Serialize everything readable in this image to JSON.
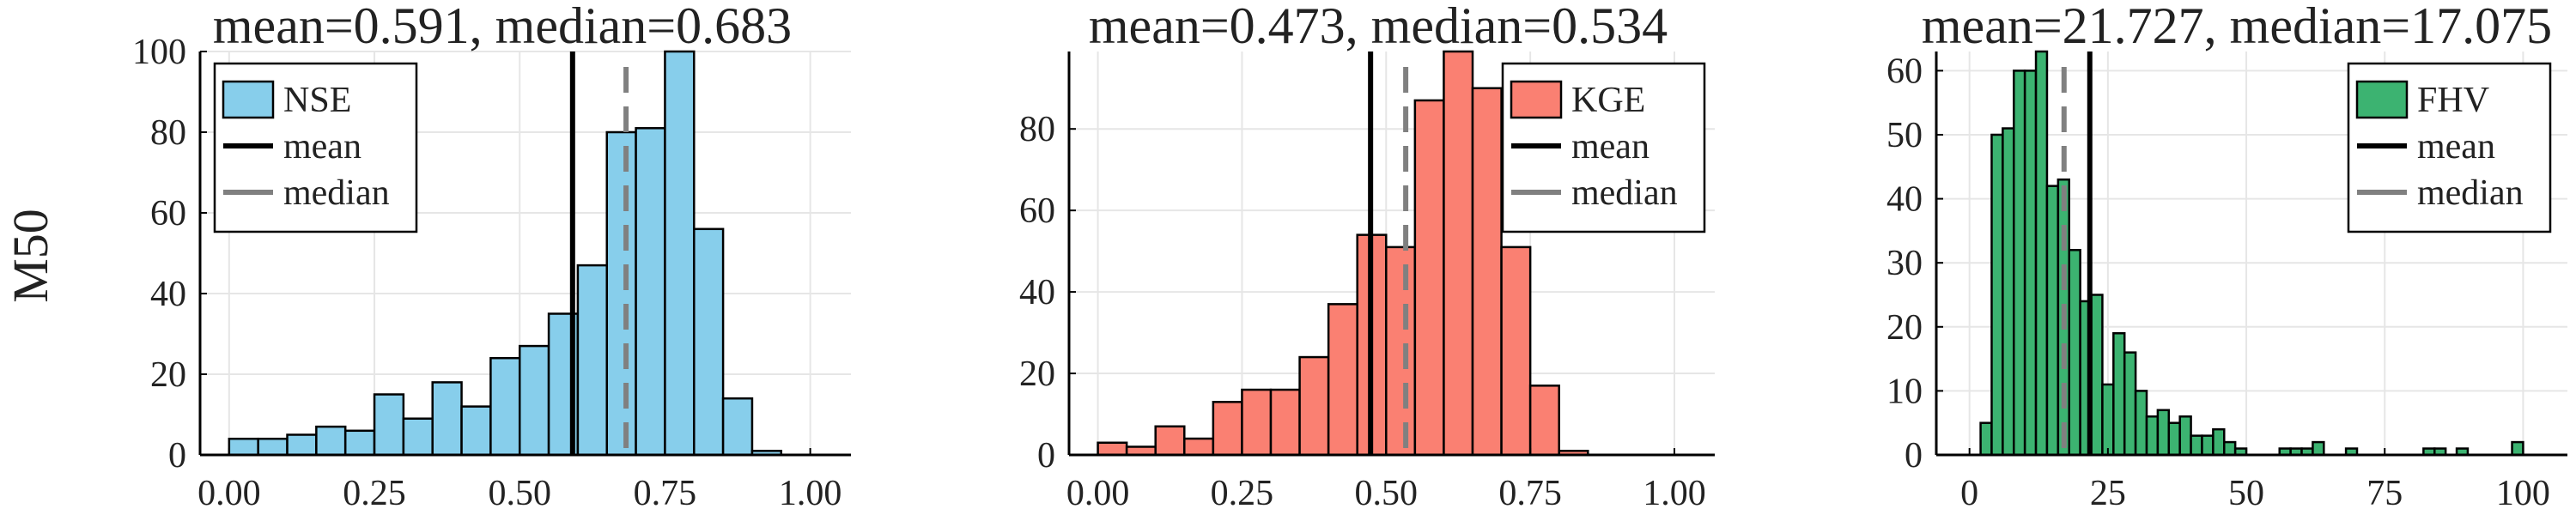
{
  "figure": {
    "row_label": "M50"
  },
  "chart_data": [
    {
      "type": "bar",
      "title": "mean=0.591, median=0.683",
      "series_name": "NSE",
      "color": "#87CEEB",
      "bin_start": 0.0,
      "bin_width": 0.05,
      "values": [
        4,
        4,
        5,
        7,
        6,
        15,
        9,
        18,
        12,
        24,
        27,
        35,
        47,
        80,
        81,
        100,
        56,
        14,
        1
      ],
      "mean": 0.591,
      "median": 0.683,
      "xlim": [
        -0.05,
        1.07
      ],
      "ylim": [
        0,
        100
      ],
      "xticks": [
        0.0,
        0.25,
        0.5,
        0.75,
        1.0
      ],
      "xtick_labels": [
        "0.00",
        "0.25",
        "0.50",
        "0.75",
        "1.00"
      ],
      "yticks": [
        0,
        20,
        40,
        60,
        80,
        100
      ],
      "ytick_labels": [
        "0",
        "20",
        "40",
        "60",
        "80",
        "100"
      ],
      "legend": {
        "position": "top-left",
        "entries": [
          "NSE",
          "mean",
          "median"
        ]
      }
    },
    {
      "type": "bar",
      "title": "mean=0.473, median=0.534",
      "series_name": "KGE",
      "color": "#FA8072",
      "bin_start": 0.0,
      "bin_width": 0.05,
      "values": [
        3,
        2,
        7,
        4,
        13,
        16,
        16,
        24,
        37,
        54,
        51,
        87,
        99,
        90,
        51,
        17,
        1
      ],
      "mean": 0.473,
      "median": 0.534,
      "xlim": [
        -0.05,
        1.07
      ],
      "ylim": [
        0,
        99
      ],
      "xticks": [
        0.0,
        0.25,
        0.5,
        0.75,
        1.0
      ],
      "xtick_labels": [
        "0.00",
        "0.25",
        "0.50",
        "0.75",
        "1.00"
      ],
      "yticks": [
        0,
        20,
        40,
        60,
        80
      ],
      "ytick_labels": [
        "0",
        "20",
        "40",
        "60",
        "80"
      ],
      "legend": {
        "position": "top-right",
        "entries": [
          "KGE",
          "mean",
          "median"
        ]
      }
    },
    {
      "type": "bar",
      "title": "mean=21.727, median=17.075",
      "series_name": "FHV",
      "color": "#3CB371",
      "bin_start": 2.0,
      "bin_width": 2.0,
      "values": [
        5,
        50,
        51,
        60,
        60,
        63,
        42,
        43,
        32,
        24,
        25,
        11,
        19,
        16,
        10,
        6,
        7,
        5,
        6,
        3,
        3,
        4,
        2,
        1,
        0,
        0,
        0,
        1,
        1,
        1,
        2,
        0,
        0,
        1,
        0,
        0,
        0,
        0,
        0,
        0,
        1,
        1,
        0,
        1,
        0,
        0,
        0,
        0,
        2
      ],
      "mean": 21.727,
      "median": 17.075,
      "xlim": [
        -6,
        108
      ],
      "ylim": [
        0,
        63
      ],
      "xticks": [
        0,
        25,
        50,
        75,
        100
      ],
      "xtick_labels": [
        "0",
        "25",
        "50",
        "75",
        "100"
      ],
      "yticks": [
        0,
        10,
        20,
        30,
        40,
        50,
        60
      ],
      "ytick_labels": [
        "0",
        "10",
        "20",
        "30",
        "40",
        "50",
        "60"
      ],
      "legend": {
        "position": "top-right",
        "entries": [
          "FHV",
          "mean",
          "median"
        ]
      }
    }
  ]
}
